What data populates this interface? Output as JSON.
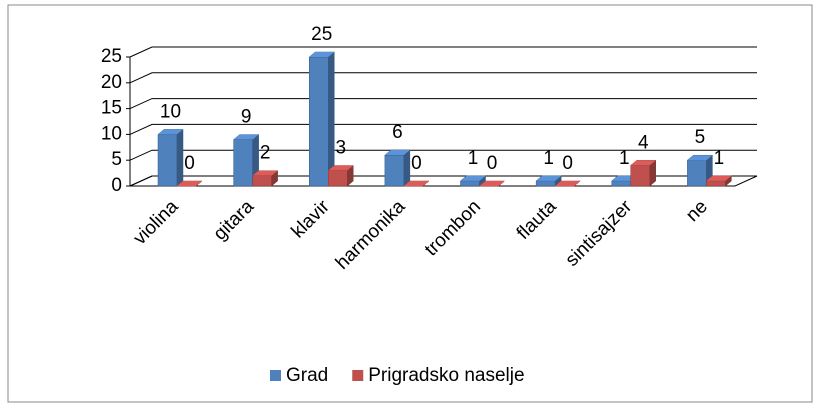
{
  "chart_data": {
    "type": "bar3d",
    "categories": [
      "violina",
      "gitara",
      "klavir",
      "harmonika",
      "trombon",
      "flauta",
      "sintisajzer",
      "ne"
    ],
    "series": [
      {
        "name": "Grad",
        "color": "#4f81bd",
        "values": [
          10,
          9,
          25,
          6,
          1,
          1,
          1,
          5
        ]
      },
      {
        "name": "Prigradsko naselje",
        "color": "#c0504d",
        "values": [
          0,
          2,
          3,
          0,
          0,
          0,
          4,
          1
        ]
      }
    ],
    "ylim": [
      0,
      25
    ],
    "yticks": [
      0,
      5,
      10,
      15,
      20,
      25
    ],
    "grid": true,
    "legend": "bottom"
  }
}
